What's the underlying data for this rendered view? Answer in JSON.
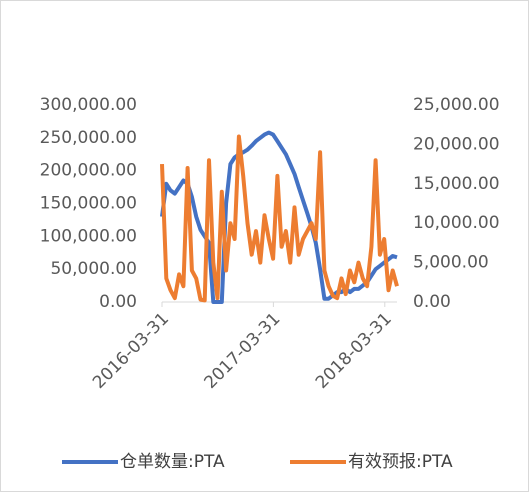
{
  "chart_data": {
    "type": "line",
    "x": [
      "2016-03-31",
      "2016-04-14",
      "2016-04-28",
      "2016-05-12",
      "2016-05-26",
      "2016-06-09",
      "2016-06-23",
      "2016-07-07",
      "2016-07-21",
      "2016-08-04",
      "2016-08-18",
      "2016-09-01",
      "2016-09-15",
      "2016-09-29",
      "2016-10-13",
      "2016-10-27",
      "2016-11-10",
      "2016-11-24",
      "2016-12-08",
      "2016-12-22",
      "2017-01-05",
      "2017-01-19",
      "2017-02-02",
      "2017-02-16",
      "2017-03-02",
      "2017-03-16",
      "2017-03-30",
      "2017-04-13",
      "2017-04-27",
      "2017-05-11",
      "2017-05-25",
      "2017-06-08",
      "2017-06-22",
      "2017-07-06",
      "2017-07-20",
      "2017-08-03",
      "2017-08-17",
      "2017-08-31",
      "2017-09-14",
      "2017-09-28",
      "2017-10-12",
      "2017-10-26",
      "2017-11-09",
      "2017-11-23",
      "2017-12-07",
      "2017-12-21",
      "2018-01-04",
      "2018-01-18",
      "2018-02-01",
      "2018-02-15",
      "2018-03-01",
      "2018-03-15",
      "2018-03-29",
      "2018-04-12",
      "2018-04-26",
      "2018-05-10"
    ],
    "xlim": [
      "2016-03-31",
      "2018-05-10"
    ],
    "xticks": [
      "2016-03-31",
      "2017-03-31",
      "2018-03-31"
    ],
    "ylim": [
      0,
      300000
    ],
    "yticks": [
      {
        "value": 0,
        "label": "0.00"
      },
      {
        "value": 50000,
        "label": "50,000.00"
      },
      {
        "value": 100000,
        "label": "100,000.00"
      },
      {
        "value": 150000,
        "label": "150,000.00"
      },
      {
        "value": 200000,
        "label": "200,000.00"
      },
      {
        "value": 250000,
        "label": "250,000.00"
      },
      {
        "value": 300000,
        "label": "300,000.00"
      }
    ],
    "y2lim": [
      0,
      25000
    ],
    "y2ticks": [
      {
        "value": 0,
        "label": "0.00"
      },
      {
        "value": 5000,
        "label": "5,000.00"
      },
      {
        "value": 10000,
        "label": "10,000.00"
      },
      {
        "value": 15000,
        "label": "15,000.00"
      },
      {
        "value": 20000,
        "label": "20,000.00"
      },
      {
        "value": 25000,
        "label": "25,000.00"
      }
    ],
    "series": [
      {
        "name": "仓单数量:PTA",
        "color": "#4472c4",
        "axis": "y",
        "values": [
          130000,
          180000,
          170000,
          165000,
          175000,
          185000,
          180000,
          160000,
          130000,
          110000,
          100000,
          90000,
          0,
          0,
          0,
          150000,
          210000,
          220000,
          225000,
          228000,
          232000,
          238000,
          245000,
          250000,
          255000,
          258000,
          255000,
          245000,
          235000,
          225000,
          210000,
          195000,
          175000,
          155000,
          135000,
          115000,
          90000,
          50000,
          5000,
          5000,
          10000,
          15000,
          15000,
          20000,
          15000,
          20000,
          20000,
          25000,
          30000,
          40000,
          50000,
          55000,
          60000,
          65000,
          70000,
          68000
        ]
      },
      {
        "name": "有效预报:PTA",
        "color": "#ed7d31",
        "axis": "y2",
        "values": [
          17500,
          3000,
          1500,
          500,
          3500,
          2000,
          17000,
          4000,
          3000,
          300,
          200,
          18000,
          5000,
          500,
          14000,
          4000,
          10000,
          8000,
          21000,
          16000,
          10000,
          6000,
          9000,
          5000,
          11000,
          8000,
          5500,
          16000,
          7000,
          9000,
          5000,
          12000,
          6000,
          8000,
          9000,
          10000,
          8000,
          19000,
          4000,
          2000,
          800,
          500,
          3000,
          1000,
          4000,
          2500,
          5000,
          3000,
          2000,
          7000,
          18000,
          6000,
          8000,
          1500,
          4000,
          2000
        ]
      }
    ],
    "legend": "bottom"
  }
}
